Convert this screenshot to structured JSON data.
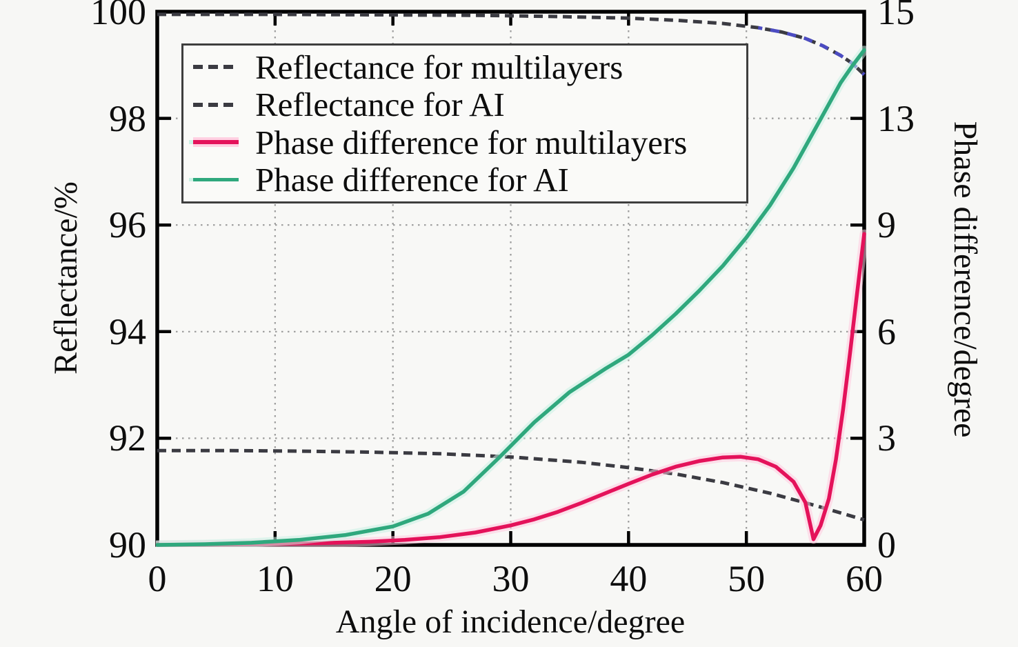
{
  "chart_data": {
    "type": "line",
    "title": "",
    "xlabel": "Angle of incidence/degree",
    "ylabel_left": "Reflectance/%",
    "ylabel_right": "Phase difference/degree",
    "xlim": [
      0,
      60
    ],
    "ylim_left": [
      90,
      100
    ],
    "ylim_right": [
      0,
      15
    ],
    "x_ticks": [
      0,
      10,
      20,
      30,
      40,
      50,
      60
    ],
    "y_ticks_left": [
      100,
      98,
      96,
      94,
      92,
      90
    ],
    "y_ticks_right_labels": [
      "15",
      "13",
      "9",
      "6",
      "3",
      "0"
    ],
    "grid": true,
    "legend_position": "upper-left",
    "series": [
      {
        "name": "Reflectance for multilayers",
        "axis": "left",
        "style": "dashed",
        "color": "#3b3b42",
        "end_tint_color": "#4c4cc2",
        "x": [
          0,
          10,
          20,
          28,
          34,
          40,
          44,
          48,
          51,
          53,
          55,
          56.5,
          58,
          59,
          60
        ],
        "y": [
          99.95,
          99.95,
          99.94,
          99.93,
          99.91,
          99.88,
          99.84,
          99.78,
          99.7,
          99.62,
          99.5,
          99.36,
          99.18,
          99.03,
          98.82
        ]
      },
      {
        "name": "Reflectance for AI",
        "axis": "left",
        "style": "dashed",
        "color": "#3b3b42",
        "x": [
          0,
          6,
          12,
          18,
          24,
          30,
          36,
          40,
          44,
          48,
          52,
          56,
          60
        ],
        "y": [
          91.77,
          91.77,
          91.76,
          91.74,
          91.71,
          91.65,
          91.55,
          91.45,
          91.33,
          91.17,
          90.97,
          90.73,
          90.47
        ]
      },
      {
        "name": "Phase difference for multilayers",
        "axis": "right",
        "style": "solid",
        "color": "#e4125a",
        "glow": "#ffc9de",
        "x": [
          0,
          5,
          10,
          14,
          18,
          21,
          24,
          27,
          30,
          32,
          34,
          36,
          38,
          40,
          42,
          44,
          46,
          48,
          49.5,
          51,
          52.5,
          54,
          55,
          55.7,
          56.3,
          57,
          57.6,
          58.2,
          58.8,
          59.4,
          60
        ],
        "y": [
          0,
          0.01,
          0.03,
          0.05,
          0.09,
          0.14,
          0.22,
          0.35,
          0.55,
          0.72,
          0.93,
          1.18,
          1.45,
          1.72,
          1.98,
          2.2,
          2.36,
          2.46,
          2.48,
          2.41,
          2.2,
          1.78,
          1.2,
          0.16,
          0.55,
          1.3,
          2.4,
          3.8,
          5.4,
          7.1,
          8.75
        ]
      },
      {
        "name": "Phase difference for AI",
        "axis": "right",
        "style": "solid",
        "color": "#2fa87d",
        "glow": "#c9f0e3",
        "x": [
          0,
          4,
          8,
          12,
          16,
          20,
          23,
          26,
          29,
          32,
          35,
          38,
          40,
          42,
          44,
          46,
          48,
          50,
          52,
          54,
          56,
          58,
          59,
          60
        ],
        "y": [
          0,
          0.02,
          0.06,
          0.14,
          0.28,
          0.52,
          0.88,
          1.5,
          2.45,
          3.45,
          4.3,
          4.95,
          5.35,
          5.9,
          6.5,
          7.15,
          7.85,
          8.65,
          9.55,
          10.6,
          11.8,
          13.0,
          13.48,
          13.92
        ]
      }
    ]
  },
  "legend": {
    "items": [
      {
        "label": "Reflectance for multilayers",
        "sample": "dashed-dark-line"
      },
      {
        "label": "Reflectance for AI",
        "sample": "dashed-dark-line"
      },
      {
        "label": "Phase difference for multilayers",
        "sample": "solid-red-line"
      },
      {
        "label": "Phase difference for AI",
        "sample": "solid-green-line"
      }
    ]
  },
  "style": {
    "background": "#f7f7f5",
    "axis_color": "#000000",
    "grid_color": "#9b9b9b",
    "text_color": "#0d0d0d"
  }
}
